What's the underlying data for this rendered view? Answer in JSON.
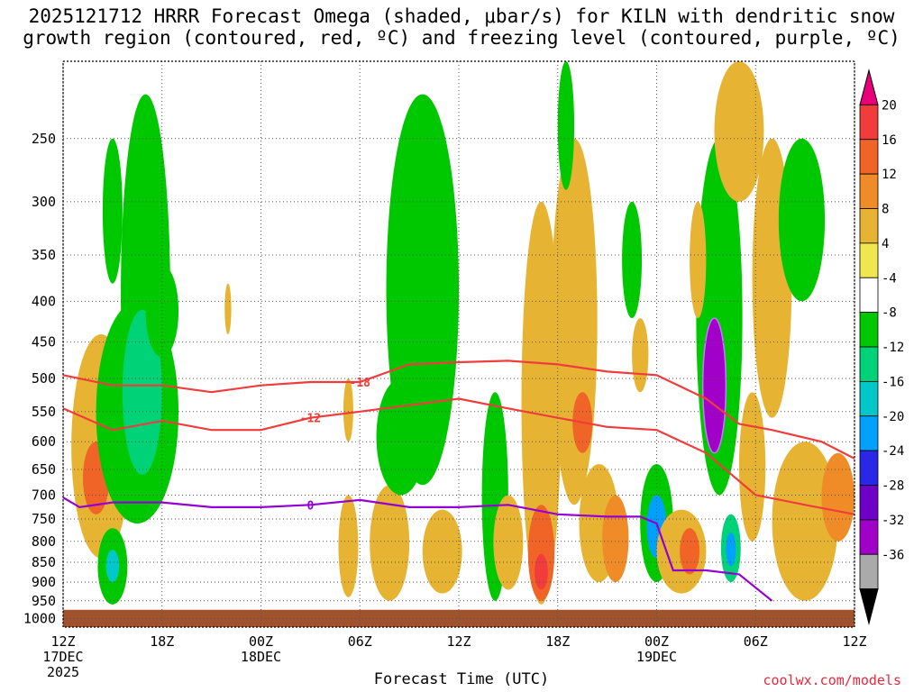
{
  "title": "2025121712 HRRR Forecast Omega (shaded, μbar/s) for KILN with dendritic snow growth region (contoured, red, ºC) and freezing level (contoured, purple, ºC)",
  "credit": "coolwx.com/models",
  "chart_data": {
    "type": "heatmap",
    "title": "2025121712 HRRR Forecast Omega (shaded, μbar/s) for KILN with dendritic snow growth region (contoured, red, ºC) and freezing level (contoured, purple, ºC)",
    "xlabel": "Forecast Time (UTC)",
    "ylabel": "",
    "x_range_hours": [
      0,
      48
    ],
    "x_ticks": [
      {
        "hour": 0,
        "label": "12Z",
        "sub": "17DEC",
        "sub2": "2025"
      },
      {
        "hour": 6,
        "label": "18Z",
        "sub": "",
        "sub2": ""
      },
      {
        "hour": 12,
        "label": "00Z",
        "sub": "18DEC",
        "sub2": ""
      },
      {
        "hour": 18,
        "label": "06Z",
        "sub": "",
        "sub2": ""
      },
      {
        "hour": 24,
        "label": "12Z",
        "sub": "",
        "sub2": ""
      },
      {
        "hour": 30,
        "label": "18Z",
        "sub": "",
        "sub2": ""
      },
      {
        "hour": 36,
        "label": "00Z",
        "sub": "19DEC",
        "sub2": ""
      },
      {
        "hour": 42,
        "label": "06Z",
        "sub": "",
        "sub2": ""
      },
      {
        "hour": 48,
        "label": "12Z",
        "sub": "",
        "sub2": ""
      }
    ],
    "y_axis": "pressure (hPa), log scale, reversed",
    "y_range": [
      200,
      1025
    ],
    "y_ticks": [
      250,
      300,
      350,
      400,
      450,
      500,
      550,
      600,
      650,
      700,
      750,
      800,
      850,
      900,
      950,
      1000
    ],
    "surface_pressure_hpa": 975,
    "colorbar": {
      "levels": [
        20,
        16,
        12,
        8,
        4,
        -4,
        -8,
        -12,
        -16,
        -20,
        -24,
        -28,
        -32,
        -36
      ],
      "colors": [
        "#e8007a",
        "#f23c3c",
        "#f06428",
        "#f08c28",
        "#e6b432",
        "#f0e650",
        "#ffffff",
        "#00c800",
        "#00d278",
        "#00c8c8",
        "#00a0ff",
        "#2828e6",
        "#6e00c8",
        "#a000c8",
        "#aaaaaa",
        "#000000"
      ]
    },
    "omega_cells": [
      {
        "hour": 2.3,
        "p": 680,
        "hw": 1.8,
        "p1": 440,
        "p2": 840,
        "value": 6
      },
      {
        "hour": 2.0,
        "p": 670,
        "hw": 0.8,
        "p1": 600,
        "p2": 740,
        "value": 14
      },
      {
        "hour": 3.0,
        "p": 310,
        "hw": 0.6,
        "p1": 250,
        "p2": 380,
        "value": -9
      },
      {
        "hour": 4.5,
        "p": 520,
        "hw": 2.5,
        "p1": 400,
        "p2": 760,
        "value": -9
      },
      {
        "hour": 5.0,
        "p": 480,
        "hw": 1.5,
        "p1": 220,
        "p2": 700,
        "value": -10
      },
      {
        "hour": 4.8,
        "p": 520,
        "hw": 1.2,
        "p1": 410,
        "p2": 660,
        "value": -13
      },
      {
        "hour": 3.0,
        "p": 850,
        "hw": 0.9,
        "p1": 770,
        "p2": 960,
        "value": -10
      },
      {
        "hour": 3.0,
        "p": 860,
        "hw": 0.4,
        "p1": 820,
        "p2": 900,
        "value": -18
      },
      {
        "hour": 6.0,
        "p": 410,
        "hw": 1.0,
        "p1": 360,
        "p2": 470,
        "value": -9
      },
      {
        "hour": 10.0,
        "p": 400,
        "hw": 0.2,
        "p1": 380,
        "p2": 440,
        "value": 5
      },
      {
        "hour": 17.3,
        "p": 530,
        "hw": 0.3,
        "p1": 500,
        "p2": 600,
        "value": 5
      },
      {
        "hour": 17.3,
        "p": 850,
        "hw": 0.6,
        "p1": 700,
        "p2": 940,
        "value": 5
      },
      {
        "hour": 19.8,
        "p": 800,
        "hw": 1.2,
        "p1": 680,
        "p2": 950,
        "value": 5
      },
      {
        "hour": 21.8,
        "p": 400,
        "hw": 2.2,
        "p1": 220,
        "p2": 680,
        "value": -9
      },
      {
        "hour": 20.5,
        "p": 600,
        "hw": 1.5,
        "p1": 500,
        "p2": 700,
        "value": -9
      },
      {
        "hour": 23.0,
        "p": 820,
        "hw": 1.2,
        "p1": 730,
        "p2": 930,
        "value": 5
      },
      {
        "hour": 26.2,
        "p": 680,
        "hw": 0.8,
        "p1": 520,
        "p2": 950,
        "value": -9
      },
      {
        "hour": 27.0,
        "p": 800,
        "hw": 0.9,
        "p1": 700,
        "p2": 920,
        "value": 5
      },
      {
        "hour": 29.0,
        "p": 480,
        "hw": 1.2,
        "p1": 300,
        "p2": 960,
        "value": 5
      },
      {
        "hour": 29.0,
        "p": 850,
        "hw": 0.8,
        "p1": 720,
        "p2": 950,
        "value": 12
      },
      {
        "hour": 29.0,
        "p": 880,
        "hw": 0.4,
        "p1": 830,
        "p2": 920,
        "value": 18
      },
      {
        "hour": 31.0,
        "p": 450,
        "hw": 1.4,
        "p1": 250,
        "p2": 720,
        "value": 6
      },
      {
        "hour": 31.5,
        "p": 560,
        "hw": 0.6,
        "p1": 520,
        "p2": 620,
        "value": 12
      },
      {
        "hour": 32.5,
        "p": 750,
        "hw": 1.2,
        "p1": 640,
        "p2": 900,
        "value": 5
      },
      {
        "hour": 33.5,
        "p": 800,
        "hw": 0.8,
        "p1": 700,
        "p2": 900,
        "value": 10
      },
      {
        "hour": 30.5,
        "p": 240,
        "hw": 0.5,
        "p1": 200,
        "p2": 290,
        "value": -9
      },
      {
        "hour": 34.5,
        "p": 350,
        "hw": 0.6,
        "p1": 300,
        "p2": 420,
        "value": -9
      },
      {
        "hour": 35.0,
        "p": 470,
        "hw": 0.5,
        "p1": 420,
        "p2": 520,
        "value": 6
      },
      {
        "hour": 36.0,
        "p": 760,
        "hw": 1.0,
        "p1": 640,
        "p2": 900,
        "value": -12
      },
      {
        "hour": 36.0,
        "p": 760,
        "hw": 0.6,
        "p1": 700,
        "p2": 840,
        "value": -24
      },
      {
        "hour": 37.5,
        "p": 830,
        "hw": 1.5,
        "p1": 730,
        "p2": 930,
        "value": 5
      },
      {
        "hour": 38.0,
        "p": 820,
        "hw": 0.6,
        "p1": 770,
        "p2": 880,
        "value": 12
      },
      {
        "hour": 39.8,
        "p": 470,
        "hw": 1.4,
        "p1": 250,
        "p2": 700,
        "value": -10
      },
      {
        "hour": 39.5,
        "p": 530,
        "hw": 0.7,
        "p1": 420,
        "p2": 620,
        "value": -36
      },
      {
        "hour": 38.5,
        "p": 350,
        "hw": 0.5,
        "p1": 300,
        "p2": 420,
        "value": 6
      },
      {
        "hour": 40.5,
        "p": 810,
        "hw": 0.6,
        "p1": 740,
        "p2": 900,
        "value": -16
      },
      {
        "hour": 40.5,
        "p": 820,
        "hw": 0.3,
        "p1": 780,
        "p2": 860,
        "value": -24
      },
      {
        "hour": 41.0,
        "p": 250,
        "hw": 1.5,
        "p1": 200,
        "p2": 300,
        "value": 5
      },
      {
        "hour": 41.8,
        "p": 620,
        "hw": 0.8,
        "p1": 520,
        "p2": 800,
        "value": 6
      },
      {
        "hour": 43.0,
        "p": 400,
        "hw": 1.2,
        "p1": 250,
        "p2": 560,
        "value": 5
      },
      {
        "hour": 44.8,
        "p": 320,
        "hw": 1.4,
        "p1": 250,
        "p2": 400,
        "value": -9
      },
      {
        "hour": 45.0,
        "p": 780,
        "hw": 2.0,
        "p1": 600,
        "p2": 950,
        "value": 5
      },
      {
        "hour": 47.0,
        "p": 700,
        "hw": 1.0,
        "p1": 620,
        "p2": 800,
        "value": 8
      }
    ],
    "dgz_contours": [
      {
        "label": "-18",
        "hours": [
          0,
          3,
          6,
          9,
          12,
          15,
          18,
          21,
          24,
          27,
          30,
          33,
          36,
          39,
          41,
          43,
          46,
          48
        ],
        "pressures": [
          495,
          510,
          510,
          520,
          510,
          505,
          505,
          480,
          477,
          475,
          480,
          490,
          495,
          530,
          570,
          580,
          600,
          630
        ]
      },
      {
        "label": "-12",
        "hours": [
          0,
          3,
          6,
          9,
          12,
          15,
          18,
          21,
          24,
          27,
          30,
          33,
          36,
          39,
          42,
          45,
          48
        ],
        "pressures": [
          545,
          580,
          565,
          580,
          580,
          560,
          550,
          540,
          530,
          545,
          560,
          575,
          580,
          620,
          700,
          720,
          740
        ]
      }
    ],
    "freezing_level": {
      "label": "0",
      "hours": [
        0,
        1,
        3,
        6,
        9,
        12,
        15,
        18,
        21,
        24,
        27,
        30,
        33,
        35,
        36,
        37,
        39,
        41,
        43
      ],
      "pressures": [
        705,
        725,
        715,
        715,
        725,
        725,
        720,
        710,
        725,
        725,
        720,
        740,
        745,
        745,
        760,
        870,
        870,
        880,
        950
      ]
    }
  }
}
